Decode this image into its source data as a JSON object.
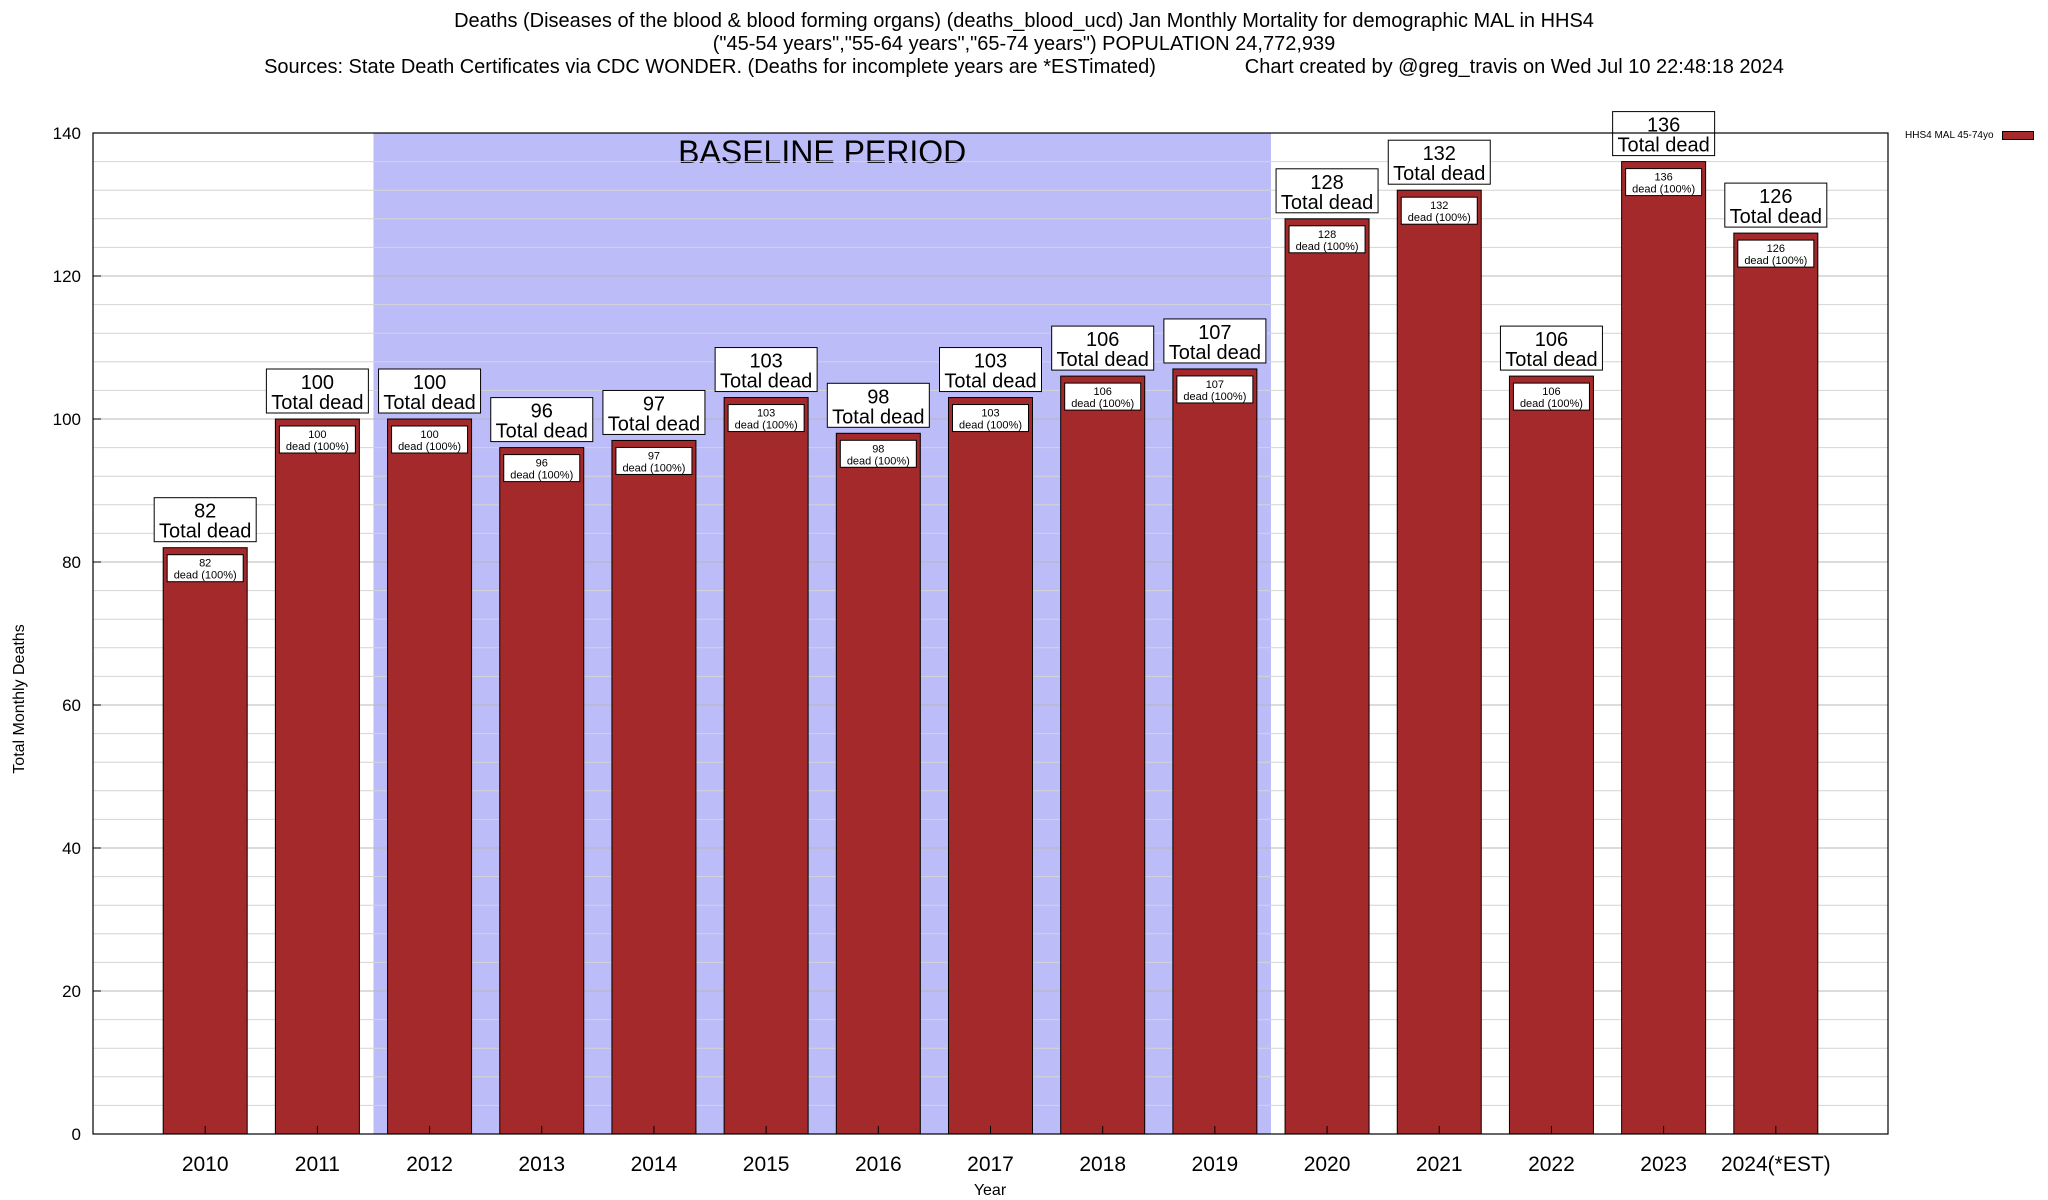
{
  "header": {
    "line1": "Deaths (Diseases of the blood & blood forming organs) (deaths_blood_ucd) Jan Monthly Mortality for demographic MAL in HHS4",
    "line2": "(\"45-54 years\",\"55-64 years\",\"65-74 years\") POPULATION 24,772,939",
    "line3": "Sources: State Death Certificates via CDC WONDER. (Deaths for incomplete years are *ESTimated)                Chart created by @greg_travis on Wed Jul 10 22:48:18 2024"
  },
  "chart_data": {
    "type": "bar",
    "categories": [
      "2010",
      "2011",
      "2012",
      "2013",
      "2014",
      "2015",
      "2016",
      "2017",
      "2018",
      "2019",
      "2020",
      "2021",
      "2022",
      "2023",
      "2024(*EST)"
    ],
    "series": [
      {
        "name": "HHS4 MAL 45-74yo",
        "values": [
          82,
          100,
          100,
          96,
          97,
          103,
          98,
          103,
          106,
          107,
          128,
          132,
          106,
          136,
          126
        ],
        "color": "#a4292b"
      }
    ],
    "xlabel": "Year",
    "ylabel": "Total Monthly Deaths",
    "ylim": [
      0,
      140
    ],
    "yticks": [
      0,
      20,
      40,
      60,
      80,
      100,
      120,
      140
    ],
    "grid": true,
    "legend_position": "top-right",
    "baseline": {
      "label": "BASELINE PERIOD",
      "start": "2012",
      "end": "2019",
      "color": "#bcbcf9"
    },
    "total_label": "Total dead",
    "inner_label": "dead (100%)"
  }
}
